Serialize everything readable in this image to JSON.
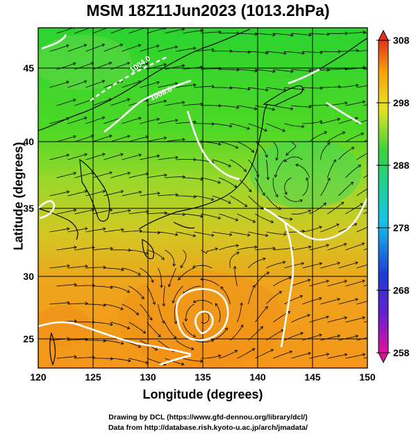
{
  "title": "MSM 18Z11Jun2023 (1013.2hPa)",
  "xlabel": "Longitude (degrees)",
  "ylabel": "Latitude  (degrees)",
  "credit_line1": "Drawing by DCL (https://www.gfd-dennou.org/library/dcl/)",
  "credit_line2": "Data from http://database.rish.kyoto-u.ac.jp/arch/jmadata/",
  "map": {
    "lon_range": [
      120,
      150
    ],
    "lat_range": [
      22.4,
      47.6
    ],
    "x_ticks": [
      "120",
      "125",
      "130",
      "135",
      "140",
      "145",
      "150"
    ],
    "y_ticks": [
      "25",
      "30",
      "35",
      "40",
      "45"
    ],
    "grid": true,
    "contour_labels": [
      "1004.0",
      "1008.0"
    ],
    "cyclone_center": {
      "lon": 135,
      "lat": 26
    }
  },
  "colorbar": {
    "min": 258,
    "max": 308,
    "labels": [
      "308",
      "298",
      "288",
      "278",
      "268",
      "258"
    ],
    "colors": [
      "#e0119c",
      "#1e2ad4",
      "#17c2e8",
      "#2fcf48",
      "#e8e224",
      "#f5a20c",
      "#e4301c"
    ]
  }
}
